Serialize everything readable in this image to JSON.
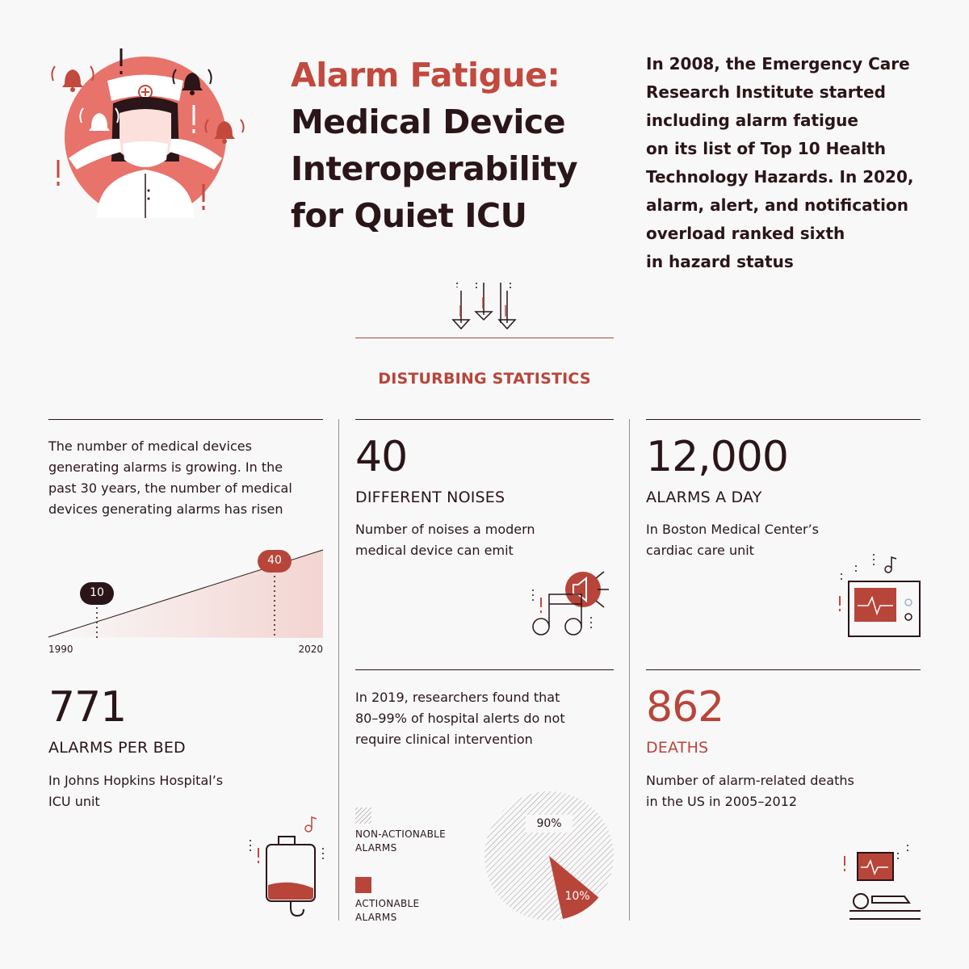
{
  "header": {
    "title_line1": "Alarm Fatigue:",
    "title_rest": [
      "Medical Device",
      "Interoperability",
      "for Quiet ICU"
    ],
    "intro_lines": [
      "In 2008, the Emergency Care",
      "Research Institute started",
      "including alarm fatigue",
      "on its list of Top 10 Health",
      "Technology Hazards. In 2020,",
      "alarm, alert, and notification",
      "overload ranked sixth",
      "in hazard status"
    ]
  },
  "section_title": "DISTURBING STATISTICS",
  "growth": {
    "text_lines": [
      "The number of medical devices",
      "generating alarms is growing. In the",
      "past 30 years, the number of medical",
      "devices generating alarms has risen"
    ],
    "start_value": "10",
    "end_value": "40",
    "start_year": "1990",
    "end_year": "2020"
  },
  "noises": {
    "number": "40",
    "caption": "DIFFERENT NOISES",
    "text_lines": [
      "Number of noises a modern",
      "medical device can emit"
    ]
  },
  "alarms_day": {
    "number": "12,000",
    "caption": "ALARMS A DAY",
    "text_lines": [
      "In Boston Medical Center’s",
      "cardiac care unit"
    ]
  },
  "per_bed": {
    "number": "771",
    "caption": "ALARMS PER BED",
    "text_lines": [
      "In Johns Hopkins Hospital’s",
      "ICU unit"
    ]
  },
  "research": {
    "text_lines": [
      "In 2019, researchers found that",
      "80–99% of hospital alerts do not",
      "require clinical intervention"
    ],
    "legend": [
      {
        "label_lines": [
          "NON-ACTIONABLE",
          "ALARMS"
        ]
      },
      {
        "label_lines": [
          "ACTIONABLE",
          "ALARMS"
        ]
      }
    ],
    "pie_labels": {
      "non_actionable": "90%",
      "actionable": "10%"
    }
  },
  "deaths": {
    "number": "862",
    "caption": "DEATHS",
    "text_lines": [
      "Number of alarm-related deaths",
      "in the US in 2005–2012"
    ]
  },
  "colors": {
    "accent": "#b8453a",
    "accent_light": "#e8736a",
    "dark": "#2a1518"
  }
}
